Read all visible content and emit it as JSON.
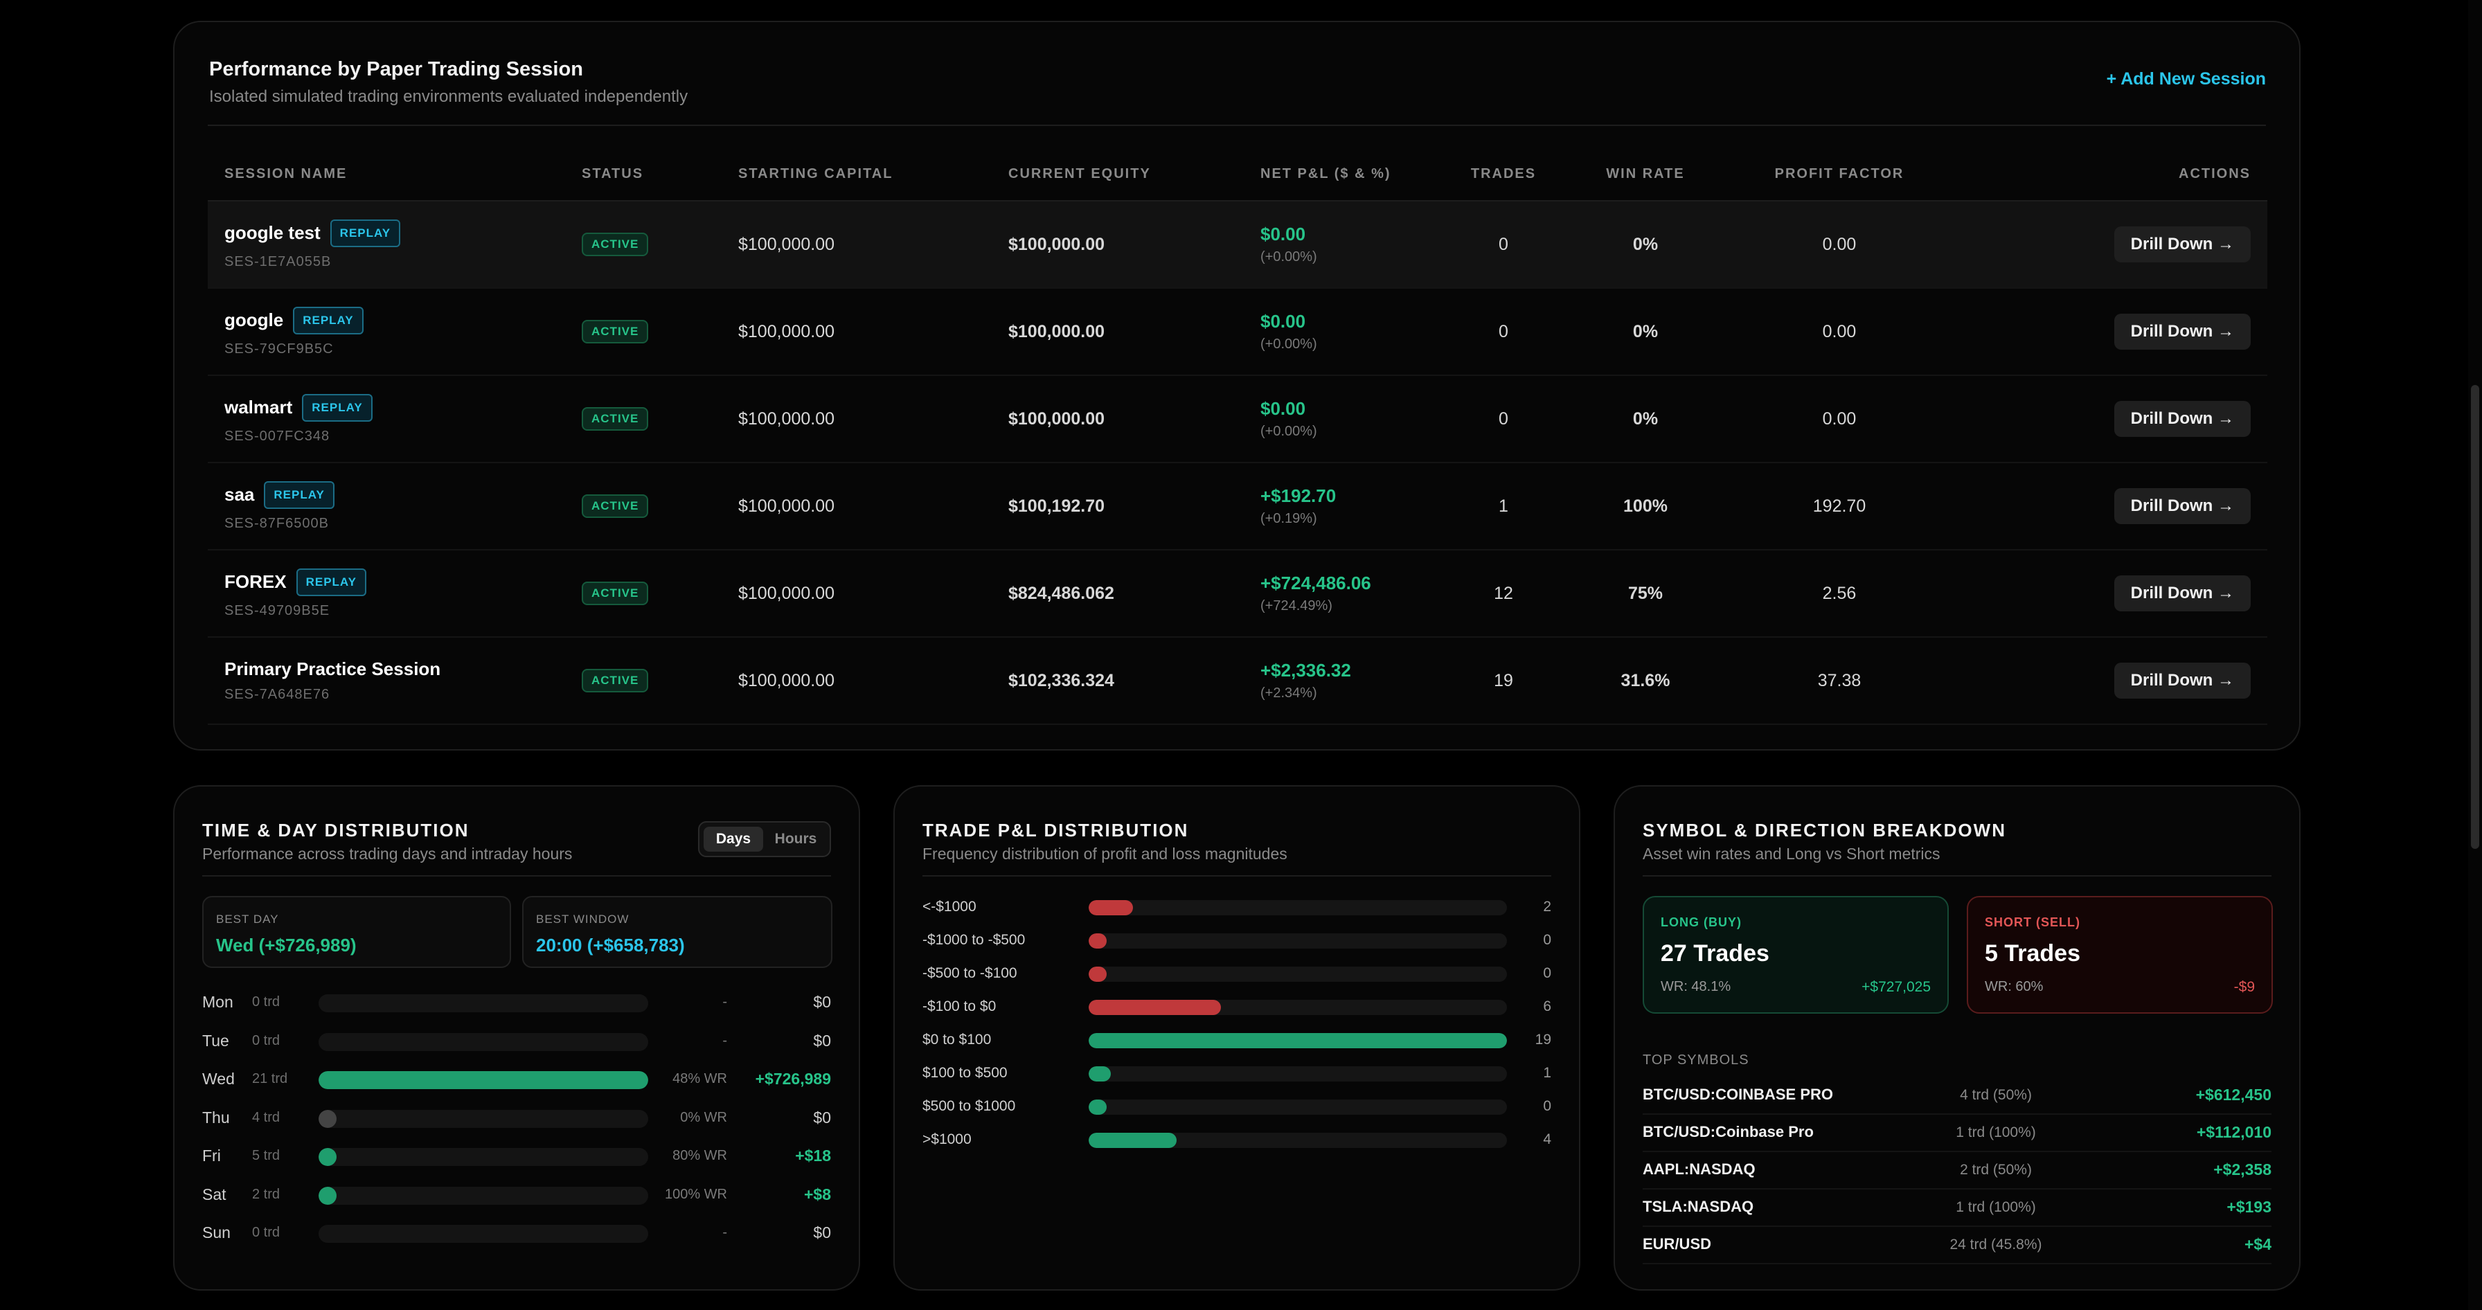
{
  "sessions_panel": {
    "title": "Performance by Paper Trading Session",
    "subtitle": "Isolated simulated trading environments evaluated independently",
    "add_button": "+ Add New Session",
    "columns": [
      "SESSION NAME",
      "STATUS",
      "STARTING CAPITAL",
      "CURRENT EQUITY",
      "NET P&L ($ & %)",
      "TRADES",
      "WIN RATE",
      "PROFIT FACTOR",
      "ACTIONS"
    ],
    "replay_label": "REPLAY",
    "status_label": "ACTIVE",
    "drill_label": "Drill Down →",
    "rows": [
      {
        "name": "google test",
        "id": "SES-1E7A055B",
        "replay": true,
        "start": "$100,000.00",
        "equity": "$100,000.00",
        "pnl": "$0.00",
        "pnl_pct": "(+0.00%)",
        "trades": "0",
        "win_rate": "0%",
        "pf": "0.00"
      },
      {
        "name": "google",
        "id": "SES-79CF9B5C",
        "replay": true,
        "start": "$100,000.00",
        "equity": "$100,000.00",
        "pnl": "$0.00",
        "pnl_pct": "(+0.00%)",
        "trades": "0",
        "win_rate": "0%",
        "pf": "0.00"
      },
      {
        "name": "walmart",
        "id": "SES-007FC348",
        "replay": true,
        "start": "$100,000.00",
        "equity": "$100,000.00",
        "pnl": "$0.00",
        "pnl_pct": "(+0.00%)",
        "trades": "0",
        "win_rate": "0%",
        "pf": "0.00"
      },
      {
        "name": "saa",
        "id": "SES-87F6500B",
        "replay": true,
        "start": "$100,000.00",
        "equity": "$100,192.70",
        "pnl": "+$192.70",
        "pnl_pct": "(+0.19%)",
        "trades": "1",
        "win_rate": "100%",
        "pf": "192.70"
      },
      {
        "name": "FOREX",
        "id": "SES-49709B5E",
        "replay": true,
        "start": "$100,000.00",
        "equity": "$824,486.062",
        "pnl": "+$724,486.06",
        "pnl_pct": "(+724.49%)",
        "trades": "12",
        "win_rate": "75%",
        "pf": "2.56"
      },
      {
        "name": "Primary Practice Session",
        "id": "SES-7A648E76",
        "replay": false,
        "start": "$100,000.00",
        "equity": "$102,336.324",
        "pnl": "+$2,336.32",
        "pnl_pct": "(+2.34%)",
        "trades": "19",
        "win_rate": "31.6%",
        "pf": "37.38"
      }
    ]
  },
  "time_panel": {
    "title": "TIME & DAY DISTRIBUTION",
    "subtitle": "Performance across trading days and intraday hours",
    "toggle": {
      "on": "Days",
      "off": "Hours"
    },
    "best_day": {
      "label": "BEST DAY",
      "value": "Wed (+$726,989)"
    },
    "best_window": {
      "label": "BEST WINDOW",
      "value": "20:00 (+$658,783)"
    },
    "days": [
      {
        "day": "Mon",
        "trades": "0 trd",
        "fill": 0,
        "wr": "-",
        "pnl": "$0"
      },
      {
        "day": "Tue",
        "trades": "0 trd",
        "fill": 0,
        "wr": "-",
        "pnl": "$0"
      },
      {
        "day": "Wed",
        "trades": "21 trd",
        "fill": 1.0,
        "wr": "48% WR",
        "pnl": "+$726,989"
      },
      {
        "day": "Thu",
        "trades": "4 trd",
        "fill": 0.001,
        "wr": "0% WR",
        "pnl": "$0"
      },
      {
        "day": "Fri",
        "trades": "5 trd",
        "fill": 0.001,
        "wr": "80% WR",
        "pnl": "+$18"
      },
      {
        "day": "Sat",
        "trades": "2 trd",
        "fill": 0.001,
        "wr": "100% WR",
        "pnl": "+$8"
      },
      {
        "day": "Sun",
        "trades": "0 trd",
        "fill": 0,
        "wr": "-",
        "pnl": "$0"
      }
    ]
  },
  "pnl_panel": {
    "title": "TRADE P&L DISTRIBUTION",
    "subtitle": "Frequency distribution of profit and loss magnitudes",
    "buckets": [
      {
        "label": "<-$1000",
        "count": 2,
        "kind": "loss"
      },
      {
        "label": "-$1000 to -$500",
        "count": 0,
        "kind": "loss"
      },
      {
        "label": "-$500 to -$100",
        "count": 0,
        "kind": "loss"
      },
      {
        "label": "-$100 to $0",
        "count": 6,
        "kind": "loss"
      },
      {
        "label": "$0 to $100",
        "count": 19,
        "kind": "gain"
      },
      {
        "label": "$100 to $500",
        "count": 1,
        "kind": "gain"
      },
      {
        "label": "$500 to $1000",
        "count": 0,
        "kind": "gain"
      },
      {
        "label": ">$1000",
        "count": 4,
        "kind": "gain"
      }
    ]
  },
  "symbol_panel": {
    "title": "SYMBOL & DIRECTION BREAKDOWN",
    "subtitle": "Asset win rates and Long vs Short metrics",
    "long": {
      "label": "LONG (BUY)",
      "trades": "27 Trades",
      "wr": "WR: 48.1%",
      "pnl": "+$727,025"
    },
    "short": {
      "label": "SHORT (SELL)",
      "trades": "5 Trades",
      "wr": "WR: 60%",
      "pnl": "-$9"
    },
    "top_label": "TOP SYMBOLS",
    "symbols": [
      {
        "name": "BTC/USD:COINBASE PRO",
        "stats": "4 trd (50%)",
        "pnl": "+$612,450"
      },
      {
        "name": "BTC/USD:Coinbase Pro",
        "stats": "1 trd (100%)",
        "pnl": "+$112,010"
      },
      {
        "name": "AAPL:NASDAQ",
        "stats": "2 trd (50%)",
        "pnl": "+$2,358"
      },
      {
        "name": "TSLA:NASDAQ",
        "stats": "1 trd (100%)",
        "pnl": "+$193"
      },
      {
        "name": "EUR/USD",
        "stats": "24 trd (45.8%)",
        "pnl": "+$4"
      }
    ]
  },
  "colors": {
    "accent": "#2bc5ea",
    "gain": "#1f9e6e",
    "gain_text": "#27c48a",
    "loss": "#c0393b",
    "loss_text": "#e25656",
    "neutral": "#444444"
  }
}
